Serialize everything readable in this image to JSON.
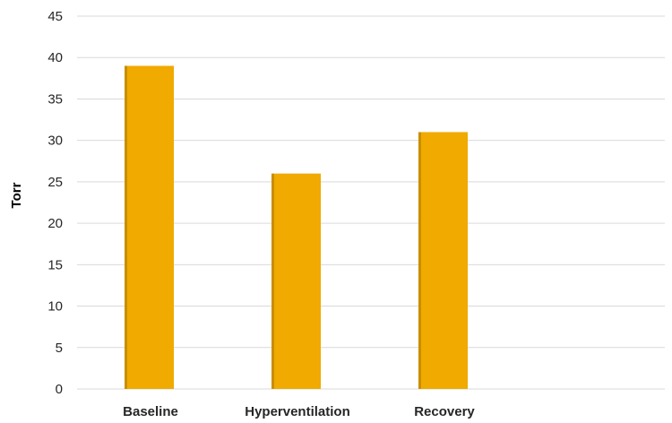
{
  "chart_data": {
    "type": "bar",
    "title": "",
    "xlabel": "",
    "ylabel": "Torr",
    "categories": [
      "Baseline",
      "Hyperventilation",
      "Recovery",
      ""
    ],
    "values": [
      39,
      26,
      31,
      null
    ],
    "ylim": [
      0,
      45
    ],
    "yticks": [
      "0",
      "5",
      "10",
      "15",
      "20",
      "25",
      "30",
      "35",
      "40",
      "45"
    ],
    "grid": true,
    "legend": "none",
    "bar_color": "#f0aa00",
    "shadow_color": "#c98e00"
  }
}
